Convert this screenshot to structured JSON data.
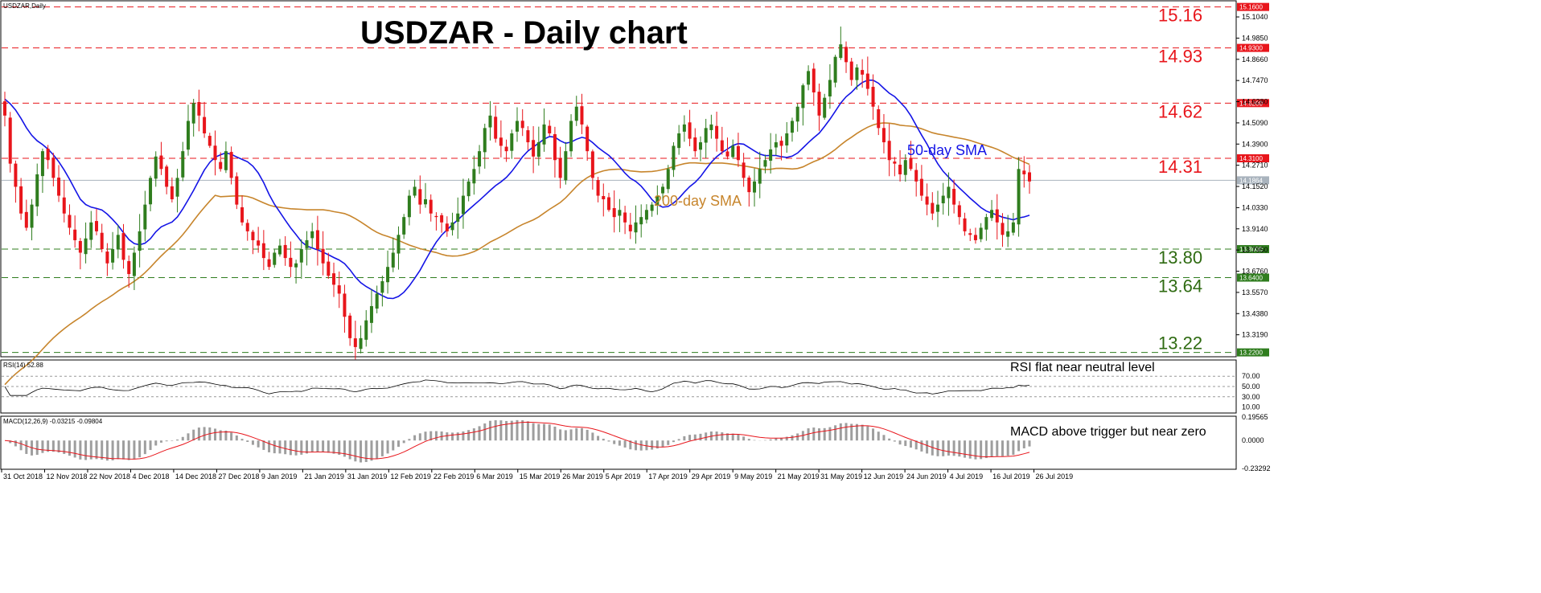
{
  "chart_data": [
    {
      "type": "candlestick",
      "symbol_label": "USDZAR,Daily",
      "title": "USDZAR - Daily chart",
      "ylim": [
        13.2,
        15.19
      ],
      "y_ticks": [
        "15.1040",
        "14.9850",
        "14.8660",
        "14.7470",
        "14.6280",
        "14.5090",
        "14.3900",
        "14.2710",
        "14.1520",
        "14.0330",
        "13.9140",
        "13.7950",
        "13.6760",
        "13.5570",
        "13.4380",
        "13.3190"
      ],
      "x_ticks": [
        "31 Oct 2018",
        "12 Nov 2018",
        "22 Nov 2018",
        "4 Dec 2018",
        "14 Dec 2018",
        "27 Dec 2018",
        "9 Jan 2019",
        "21 Jan 2019",
        "31 Jan 2019",
        "12 Feb 2019",
        "22 Feb 2019",
        "6 Mar 2019",
        "15 Mar 2019",
        "26 Mar 2019",
        "5 Apr 2019",
        "17 Apr 2019",
        "29 Apr 2019",
        "9 May 2019",
        "21 May 2019",
        "31 May 2019",
        "12 Jun 2019",
        "24 Jun 2019",
        "4 Jul 2019",
        "16 Jul 2019",
        "26 Jul 2019"
      ],
      "current_price": "14.1864",
      "levels": [
        {
          "value": 15.16,
          "label": "15.16",
          "tag": "15.1600",
          "kind": "resistance"
        },
        {
          "value": 14.93,
          "label": "14.93",
          "tag": "14.9300",
          "kind": "resistance"
        },
        {
          "value": 14.62,
          "label": "14.62",
          "tag": "14.6200",
          "kind": "resistance"
        },
        {
          "value": 14.31,
          "label": "14.31",
          "tag": "14.3100",
          "kind": "resistance"
        },
        {
          "value": 13.8,
          "label": "13.80",
          "tag": "13.8000",
          "kind": "support"
        },
        {
          "value": 13.64,
          "label": "13.64",
          "tag": "13.6400",
          "kind": "support"
        },
        {
          "value": 13.22,
          "label": "13.22",
          "tag": "13.2200",
          "kind": "support"
        }
      ],
      "annotations": {
        "sma50": "50-day SMA",
        "sma200": "200-day SMA"
      },
      "closes": [
        14.55,
        14.28,
        14.15,
        14.0,
        13.92,
        14.05,
        14.22,
        14.35,
        14.3,
        14.2,
        14.1,
        14.0,
        13.92,
        13.85,
        13.78,
        13.86,
        13.95,
        13.9,
        13.8,
        13.72,
        13.8,
        13.88,
        13.74,
        13.66,
        13.78,
        13.9,
        14.05,
        14.2,
        14.32,
        14.25,
        14.15,
        14.08,
        14.2,
        14.35,
        14.52,
        14.62,
        14.55,
        14.45,
        14.38,
        14.3,
        14.25,
        14.35,
        14.2,
        14.05,
        13.95,
        13.9,
        13.85,
        13.82,
        13.75,
        13.7,
        13.78,
        13.82,
        13.75,
        13.7,
        13.72,
        13.8,
        13.85,
        13.9,
        13.8,
        13.72,
        13.65,
        13.6,
        13.55,
        13.42,
        13.3,
        13.25,
        13.3,
        13.4,
        13.48,
        13.55,
        13.62,
        13.7,
        13.78,
        13.88,
        13.98,
        14.1,
        14.15,
        14.05,
        14.08,
        14.0,
        13.98,
        13.95,
        13.9,
        13.95,
        14.0,
        14.1,
        14.18,
        14.25,
        14.35,
        14.48,
        14.55,
        14.42,
        14.38,
        14.35,
        14.45,
        14.52,
        14.48,
        14.4,
        14.32,
        14.4,
        14.5,
        14.45,
        14.3,
        14.2,
        14.35,
        14.52,
        14.6,
        14.5,
        14.35,
        14.2,
        14.1,
        14.08,
        14.02,
        13.98,
        14.02,
        13.95,
        13.9,
        13.95,
        13.98,
        14.02,
        14.05,
        14.1,
        14.15,
        14.25,
        14.38,
        14.45,
        14.5,
        14.42,
        14.35,
        14.4,
        14.48,
        14.5,
        14.42,
        14.35,
        14.32,
        14.38,
        14.3,
        14.2,
        14.12,
        14.18,
        14.25,
        14.3,
        14.36,
        14.4,
        14.38,
        14.45,
        14.52,
        14.6,
        14.72,
        14.8,
        14.68,
        14.55,
        14.65,
        14.75,
        14.88,
        14.95,
        14.85,
        14.75,
        14.82,
        14.78,
        14.7,
        14.6,
        14.48,
        14.4,
        14.3,
        14.28,
        14.22,
        14.3,
        14.25,
        14.18,
        14.1,
        14.05,
        14.0,
        14.05,
        14.1,
        14.15,
        14.05,
        13.98,
        13.9,
        13.88,
        13.85,
        13.92,
        13.98,
        14.02,
        13.95,
        13.88,
        13.9,
        13.95,
        14.25,
        14.22,
        14.18
      ]
    },
    {
      "type": "line",
      "indicator_label": "RSI(14) 52.88",
      "ylim": [
        20,
        80
      ],
      "y_ticks": [
        "70.00",
        "50.00",
        "30.00",
        "10.00"
      ],
      "annotation": "RSI flat near neutral level"
    },
    {
      "type": "histogram+line",
      "indicator_label": "MACD(12,26,9) -0.03215 -0.09804",
      "y_ticks": [
        "0.19565",
        "0.0000",
        "-0.23292"
      ],
      "annotation": "MACD above trigger but near zero"
    }
  ],
  "colors": {
    "up": "#2f7d1e",
    "down": "#e8151b",
    "sma50": "#1414e6",
    "sma200": "#c7852c",
    "resistance": "#e8151b",
    "support": "#2f7d1e"
  }
}
